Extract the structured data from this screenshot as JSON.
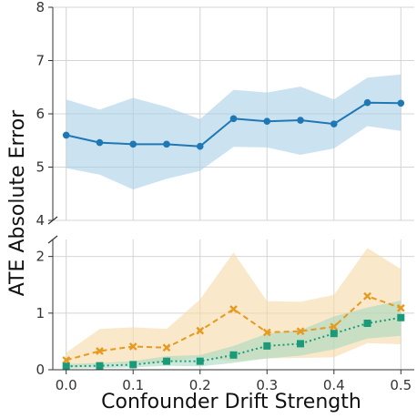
{
  "chart_data": {
    "type": "line",
    "xlabel": "Confounder Drift Strength",
    "ylabel": "ATE Absolute Error",
    "x": [
      0.0,
      0.05,
      0.1,
      0.15,
      0.2,
      0.25,
      0.3,
      0.35,
      0.4,
      0.45,
      0.5
    ],
    "xlim": [
      -0.02,
      0.52
    ],
    "x_ticks": [
      "0.0",
      "0.1",
      "0.2",
      "0.3",
      "0.4",
      "0.5"
    ],
    "grid": true,
    "broken_axis": true,
    "panels": [
      {
        "position": "top",
        "ylim": [
          4,
          8
        ],
        "y_ticks": [
          "4",
          "5",
          "6",
          "7",
          "8"
        ],
        "series": [
          {
            "color": "#1f77b4",
            "band_color": "#a9cfe8",
            "linestyle": "solid",
            "marker": "circle",
            "values": [
              5.6,
              5.46,
              5.43,
              5.43,
              5.39,
              5.91,
              5.86,
              5.88,
              5.81,
              6.21,
              6.2
            ],
            "lower": [
              4.98,
              4.86,
              4.58,
              4.78,
              4.93,
              5.38,
              5.37,
              5.23,
              5.35,
              5.77,
              5.68
            ],
            "upper": [
              6.27,
              6.08,
              6.3,
              6.13,
              5.9,
              6.45,
              6.4,
              6.51,
              6.27,
              6.68,
              6.74
            ]
          }
        ]
      },
      {
        "position": "bottom",
        "ylim": [
          0,
          2.3
        ],
        "y_ticks": [
          "0",
          "1",
          "2"
        ],
        "series": [
          {
            "color": "#e69a1f",
            "band_color": "#f6d9a7",
            "linestyle": "dashed",
            "marker": "x",
            "values": [
              0.17,
              0.33,
              0.41,
              0.39,
              0.69,
              1.07,
              0.66,
              0.68,
              0.76,
              1.3,
              1.09
            ],
            "lower": [
              0.05,
              0.1,
              0.12,
              0.13,
              0.22,
              0.15,
              0.2,
              0.21,
              0.22,
              0.47,
              0.45
            ],
            "upper": [
              0.3,
              0.72,
              0.75,
              0.72,
              1.24,
              2.07,
              1.21,
              1.2,
              1.32,
              2.15,
              1.78
            ]
          },
          {
            "color": "#1a9a78",
            "band_color": "#a9d9bf",
            "linestyle": "dotted",
            "marker": "square",
            "values": [
              0.06,
              0.07,
              0.09,
              0.15,
              0.15,
              0.26,
              0.42,
              0.46,
              0.64,
              0.82,
              0.92
            ],
            "lower": [
              0.02,
              0.03,
              0.04,
              0.07,
              0.06,
              0.12,
              0.2,
              0.25,
              0.36,
              0.55,
              0.6
            ],
            "upper": [
              0.1,
              0.12,
              0.15,
              0.24,
              0.26,
              0.42,
              0.64,
              0.7,
              0.94,
              1.1,
              1.22
            ]
          }
        ]
      }
    ]
  }
}
